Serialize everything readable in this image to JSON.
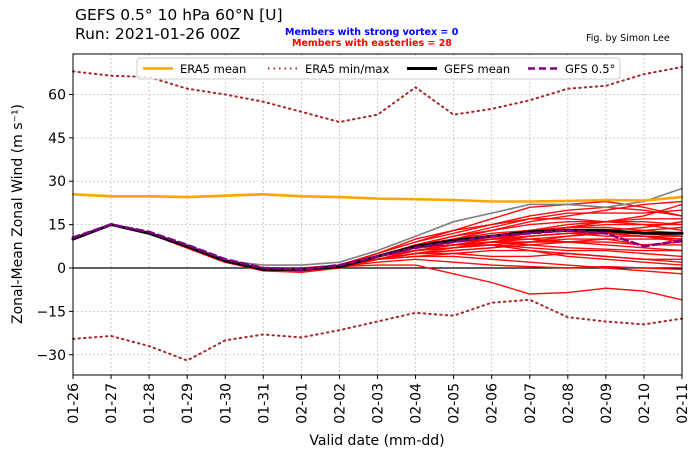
{
  "header": {
    "title_line1": "GEFS 0.5°  10 hPa 60°N [U]",
    "title_line2": "Run: 2021-01-26 00Z",
    "members_strong_vortex": "Members with strong vortex = 0",
    "members_easterlies": "Members with easterlies = 28",
    "credit": "Fig. by Simon Lee"
  },
  "colors": {
    "era5_mean": "#ffa500",
    "era5_minmax": "#a52a2a",
    "gefs_mean": "#000000",
    "gfs": "#800080",
    "ensemble": "#ff0000",
    "control": "#808080"
  },
  "chart_data": {
    "type": "line",
    "xlabel": "Valid date (mm-dd)",
    "ylabel": "Zonal-Mean Zonal Wind (m s⁻¹)",
    "ylim": [
      -37,
      74
    ],
    "yticks": [
      -30,
      -15,
      0,
      15,
      30,
      45,
      60
    ],
    "grid": true,
    "legend_placement": "top",
    "categories": [
      "01-26",
      "01-27",
      "01-28",
      "01-29",
      "01-30",
      "01-31",
      "02-01",
      "02-02",
      "02-03",
      "02-04",
      "02-05",
      "02-06",
      "02-07",
      "02-08",
      "02-09",
      "02-10",
      "02-11"
    ],
    "series": [
      {
        "name": "ERA5 mean",
        "style": "solid",
        "values": [
          25.5,
          24.8,
          24.8,
          24.5,
          25.0,
          25.5,
          24.8,
          24.5,
          24.0,
          23.8,
          23.5,
          23.0,
          23.0,
          23.2,
          23.5,
          23.3,
          24.5
        ]
      },
      {
        "name": "ERA5 min/max",
        "style": "dotted",
        "values": [
          68,
          66.5,
          66,
          62,
          60,
          57.5,
          54,
          50.5,
          53,
          62.5,
          53,
          55,
          58,
          62,
          63,
          67,
          69.5
        ]
      },
      {
        "name": "ERA5 min/max",
        "style": "dotted",
        "legend": false,
        "values": [
          -24.5,
          -23.5,
          -27,
          -32,
          -25,
          -23,
          -24,
          -21.5,
          -18.5,
          -15.5,
          -16.5,
          -12,
          -11,
          -17,
          -18.5,
          -19.5,
          -17.5
        ]
      },
      {
        "name": "GEFS mean",
        "style": "solid",
        "values": [
          10,
          15,
          12,
          7.5,
          2.5,
          -0.5,
          -0.5,
          0.5,
          4,
          7.5,
          9.5,
          11,
          12.5,
          13,
          13,
          12,
          12
        ]
      },
      {
        "name": "GFS 0.5°",
        "style": "dashed",
        "values": [
          10.5,
          15,
          12.5,
          8,
          3,
          0,
          -0.5,
          1,
          4,
          7,
          9,
          11,
          12,
          13,
          12,
          7.5,
          9.5
        ]
      }
    ],
    "members": [
      [
        10,
        15,
        12,
        7,
        2,
        0,
        -0.5,
        1,
        4,
        7,
        9,
        11,
        12,
        13,
        12.5,
        12,
        12
      ],
      [
        10,
        15,
        12,
        7,
        2,
        0,
        -0.5,
        1,
        4,
        7,
        8,
        9,
        8,
        7,
        6.5,
        6,
        6
      ],
      [
        10,
        15,
        12,
        7,
        2,
        0,
        -0.5,
        1,
        4,
        7,
        9,
        10,
        11,
        12,
        11,
        11,
        11
      ],
      [
        10,
        15,
        12,
        7,
        2,
        -0.5,
        -1,
        0.5,
        3,
        6,
        8,
        9,
        10,
        11,
        12,
        13,
        14
      ],
      [
        10,
        15,
        12,
        7,
        2,
        -1,
        -1.5,
        0,
        3,
        6,
        8,
        10,
        12,
        14,
        16,
        18,
        22
      ],
      [
        10,
        15,
        12,
        7,
        2,
        0,
        -0.5,
        0,
        3,
        5,
        6,
        7,
        8,
        9,
        10,
        8,
        9
      ],
      [
        10,
        15,
        12,
        7,
        2,
        0,
        -0.5,
        0.5,
        3,
        5,
        5,
        4,
        4,
        5,
        4,
        3,
        3
      ],
      [
        10,
        15,
        12,
        7,
        2,
        0,
        -0.5,
        0.5,
        3,
        4,
        4,
        3,
        2,
        1,
        0,
        -1,
        -2
      ],
      [
        10,
        15,
        12,
        7,
        2,
        -0.5,
        -1,
        0.5,
        1,
        1,
        -2,
        -5,
        -9,
        -8.5,
        -7,
        -8,
        -11
      ],
      [
        10,
        15,
        12,
        7,
        2,
        0,
        -0.5,
        1,
        4,
        8,
        11,
        14,
        17,
        19,
        19,
        19,
        20
      ],
      [
        10,
        15,
        12,
        7,
        2,
        0,
        -0.5,
        1,
        5,
        9,
        13,
        17,
        21,
        22,
        23,
        21,
        18
      ],
      [
        10,
        15,
        12,
        7,
        2,
        0,
        0,
        1,
        5,
        10,
        13,
        15,
        17,
        17,
        16,
        16,
        15
      ],
      [
        10,
        15,
        12,
        7,
        2,
        0,
        -0.5,
        1,
        4,
        7,
        9,
        11,
        13,
        13,
        12,
        11,
        9
      ],
      [
        10,
        15,
        12,
        7,
        2,
        0,
        -0.5,
        1,
        4,
        7,
        8,
        8,
        6,
        4,
        3,
        2,
        1
      ],
      [
        10,
        15,
        12,
        7,
        2,
        -0.5,
        -1,
        0.5,
        3,
        6,
        8,
        10,
        12,
        14,
        15,
        15,
        15
      ],
      [
        10,
        15,
        12,
        7,
        2,
        0,
        -0.5,
        1,
        4,
        6,
        7,
        8,
        7,
        6,
        6,
        5,
        4
      ],
      [
        10,
        15,
        12,
        7,
        2,
        0,
        -0.5,
        1,
        5,
        9,
        12,
        15,
        18,
        20,
        21,
        20,
        18
      ],
      [
        10,
        15,
        12,
        7,
        2,
        0,
        -0.5,
        1,
        4,
        8,
        10,
        12,
        13,
        14,
        14,
        13,
        12
      ],
      [
        10,
        15,
        12,
        7,
        2,
        0,
        -0.5,
        1,
        4,
        7,
        9,
        10,
        10,
        9,
        8,
        7,
        6
      ],
      [
        10,
        15,
        12,
        7,
        2,
        0,
        -0.5,
        1,
        3,
        5,
        6,
        7,
        9,
        11,
        12,
        12,
        11
      ],
      [
        10,
        15,
        12,
        7,
        2,
        0,
        -0.5,
        1,
        4,
        7,
        10,
        13,
        16,
        18,
        20,
        22,
        23
      ],
      [
        10,
        15,
        12,
        7,
        2,
        0,
        -0.5,
        0.5,
        2,
        3,
        2,
        1,
        0.5,
        0,
        0.5,
        0,
        -0.5
      ],
      [
        10,
        15,
        12,
        7,
        2,
        0,
        -0.5,
        1,
        4,
        7,
        9,
        11,
        13,
        15,
        16,
        17,
        17
      ],
      [
        10,
        15,
        12,
        7,
        2,
        0,
        -0.5,
        1,
        4,
        6,
        7,
        8,
        9,
        10,
        10,
        10,
        10
      ],
      [
        10,
        15,
        12,
        7,
        2,
        0,
        -0.5,
        1,
        4,
        8,
        11,
        13,
        15,
        16,
        16,
        15,
        13
      ],
      [
        10,
        15,
        12,
        7,
        2,
        0,
        -0.5,
        1,
        3,
        5,
        7,
        9,
        11,
        12,
        13,
        14,
        16
      ],
      [
        10,
        15,
        12,
        7,
        2,
        0,
        -0.5,
        1,
        4,
        7,
        8,
        9,
        9,
        9,
        9,
        8,
        8
      ],
      [
        10,
        15,
        12,
        7,
        2,
        0,
        -0.5,
        1,
        4,
        6,
        8,
        10,
        11,
        12,
        12,
        11,
        10
      ],
      [
        10,
        15,
        12,
        7,
        2,
        0,
        -0.5,
        1,
        4,
        7,
        9,
        11,
        12,
        13,
        13,
        12,
        11
      ],
      [
        10,
        15,
        12,
        7,
        2,
        0,
        -0.5,
        1,
        3,
        4,
        5,
        6,
        6,
        5,
        4,
        3,
        2
      ]
    ],
    "control": [
      10,
      15,
      12,
      7.5,
      2.5,
      1,
      1,
      2,
      6,
      11,
      16,
      19,
      22,
      22,
      21,
      23,
      27.5
    ],
    "zero_line": 0
  }
}
